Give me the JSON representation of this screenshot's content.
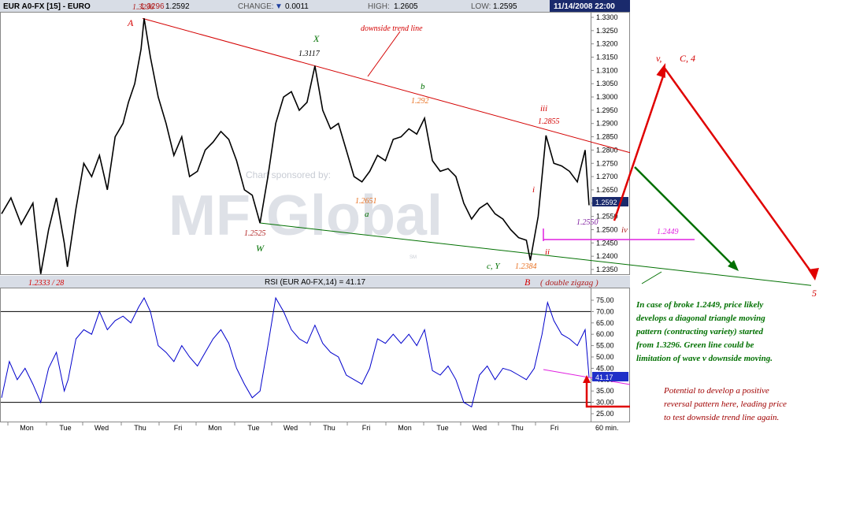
{
  "header": {
    "symbol": "EUR A0-FX [15] - EURO",
    "last_prefix": "1.3296",
    "last": "1.2592",
    "change_label": "CHANGE:",
    "change": "0.0011",
    "high_label": "HIGH:",
    "high": "1.2605",
    "low_label": "LOW:",
    "low": "1.2595",
    "datetime": "11/14/2008 22:00"
  },
  "watermark": {
    "line1": "Chart sponsored by:",
    "logo": "MF Global",
    "sm": "SM"
  },
  "price_panel": {
    "y_ticks": [
      "1.3300",
      "1.3250",
      "1.3200",
      "1.3150",
      "1.3100",
      "1.3050",
      "1.3000",
      "1.2950",
      "1.2900",
      "1.2850",
      "1.2800",
      "1.2750",
      "1.2700",
      "1.2650",
      "1.2600",
      "1.2550",
      "1.2500",
      "1.2450",
      "1.2400",
      "1.2350"
    ],
    "last_price_box": "1.2592",
    "colors": {
      "price_line": "#000000",
      "resistance": "#d40000",
      "support": "#007000",
      "magenta": "#e020e0",
      "orange": "#e87020"
    }
  },
  "rsi_panel": {
    "title": "RSI (EUR A0-FX,14) = 41.17",
    "y_ticks": [
      "75.00",
      "70.00",
      "65.00",
      "60.00",
      "55.00",
      "50.00",
      "45.00",
      "40.00",
      "35.00",
      "30.00",
      "25.00"
    ],
    "last_value_box": "41.17",
    "color": "#0000cc"
  },
  "x_axis": {
    "labels": [
      "Mon",
      "Tue",
      "Wed",
      "Thu",
      "Fri",
      "Mon",
      "Tue",
      "Wed",
      "Thu",
      "Fri",
      "Mon",
      "Tue",
      "Wed",
      "Thu",
      "Fri"
    ],
    "interval": "60 min."
  },
  "annotations": {
    "A": "A",
    "price_13296": "1.3296",
    "low_12333": "1.2333 / 28",
    "X": "X",
    "price_13117": "1.3117",
    "trend_label": "downside trend line",
    "b": "b",
    "price_1292": "1.292",
    "iii": "iii",
    "price_12855": "1.2855",
    "i": "i",
    "price_12651": "1.2651",
    "a": "a",
    "price_12525": "1.2525",
    "W": "W",
    "ii": "ii",
    "cY": "c, Y",
    "price_12384": "1.2384",
    "B": "B",
    "double_zigzag": "( double zigzag )",
    "price_12550": "1.2550",
    "iv": "iv",
    "price_12449": "1.2449",
    "v": "v,",
    "C4": "C, 4",
    "five": "5",
    "note1": [
      "In case of broke 1.2449, price likely",
      "develops a diagonal triangle moving",
      "pattern (contracting variety) started",
      "from 1.3296. Green line could be",
      "limitation of wave v downside moving."
    ],
    "note2": [
      "Potential to develop a positive",
      "reversal pattern here, leading price",
      "to test downside trend line again."
    ]
  },
  "chart_data": [
    {
      "type": "line",
      "title": "EUR A0-FX [15] - EURO",
      "interval": "60 min.",
      "ylim": [
        1.233,
        1.331
      ],
      "series": [
        {
          "name": "EUR A0-FX",
          "x": [
            "Mon",
            "Tue",
            "Wed",
            "Thu",
            "Fri",
            "Mon",
            "Tue",
            "Wed",
            "Thu",
            "Fri",
            "Mon",
            "Tue",
            "Wed",
            "Thu",
            "Fri"
          ],
          "points": [
            [
              0,
              1.256
            ],
            [
              12,
              1.262
            ],
            [
              25,
              1.252
            ],
            [
              40,
              1.26
            ],
            [
              50,
              1.2333
            ],
            [
              60,
              1.25
            ],
            [
              70,
              1.262
            ],
            [
              80,
              1.245
            ],
            [
              84,
              1.236
            ],
            [
              95,
              1.258
            ],
            [
              105,
              1.275
            ],
            [
              115,
              1.27
            ],
            [
              125,
              1.278
            ],
            [
              135,
              1.265
            ],
            [
              145,
              1.285
            ],
            [
              155,
              1.29
            ],
            [
              162,
              1.298
            ],
            [
              170,
              1.305
            ],
            [
              178,
              1.318
            ],
            [
              182,
              1.3296
            ],
            [
              190,
              1.315
            ],
            [
              200,
              1.3
            ],
            [
              210,
              1.29
            ],
            [
              220,
              1.278
            ],
            [
              230,
              1.285
            ],
            [
              240,
              1.27
            ],
            [
              250,
              1.272
            ],
            [
              260,
              1.28
            ],
            [
              270,
              1.283
            ],
            [
              280,
              1.287
            ],
            [
              290,
              1.284
            ],
            [
              300,
              1.276
            ],
            [
              310,
              1.265
            ],
            [
              320,
              1.263
            ],
            [
              330,
              1.2525
            ],
            [
              340,
              1.27
            ],
            [
              350,
              1.29
            ],
            [
              360,
              1.3
            ],
            [
              370,
              1.302
            ],
            [
              380,
              1.295
            ],
            [
              390,
              1.298
            ],
            [
              400,
              1.3117
            ],
            [
              410,
              1.295
            ],
            [
              420,
              1.288
            ],
            [
              430,
              1.29
            ],
            [
              440,
              1.28
            ],
            [
              450,
              1.27
            ],
            [
              460,
              1.268
            ],
            [
              470,
              1.272
            ],
            [
              480,
              1.278
            ],
            [
              490,
              1.276
            ],
            [
              500,
              1.284
            ],
            [
              510,
              1.285
            ],
            [
              520,
              1.288
            ],
            [
              530,
              1.286
            ],
            [
              540,
              1.292
            ],
            [
              550,
              1.276
            ],
            [
              560,
              1.272
            ],
            [
              570,
              1.273
            ],
            [
              580,
              1.27
            ],
            [
              590,
              1.26
            ],
            [
              600,
              1.254
            ],
            [
              610,
              1.258
            ],
            [
              620,
              1.26
            ],
            [
              630,
              1.256
            ],
            [
              640,
              1.254
            ],
            [
              650,
              1.25
            ],
            [
              660,
              1.247
            ],
            [
              670,
              1.246
            ],
            [
              675,
              1.2384
            ],
            [
              685,
              1.255
            ],
            [
              695,
              1.2855
            ],
            [
              705,
              1.275
            ],
            [
              715,
              1.274
            ],
            [
              725,
              1.272
            ],
            [
              735,
              1.268
            ],
            [
              745,
              1.28
            ],
            [
              750,
              1.2592
            ]
          ]
        },
        {
          "name": "downside trend line",
          "points": [
            [
              180,
              1.3296
            ],
            [
              800,
              1.279
            ]
          ]
        },
        {
          "name": "support line",
          "points": [
            [
              330,
              1.2525
            ],
            [
              1030,
              1.229
            ]
          ]
        }
      ]
    },
    {
      "type": "line",
      "title": "RSI (EUR A0-FX,14) = 41.17",
      "ylim": [
        22,
        78
      ],
      "reference_lines": [
        70,
        30
      ],
      "series": [
        {
          "name": "RSI",
          "points": [
            [
              0,
              32
            ],
            [
              10,
              48
            ],
            [
              20,
              40
            ],
            [
              30,
              45
            ],
            [
              40,
              38
            ],
            [
              50,
              30
            ],
            [
              60,
              45
            ],
            [
              70,
              52
            ],
            [
              80,
              35
            ],
            [
              85,
              40
            ],
            [
              95,
              58
            ],
            [
              105,
              62
            ],
            [
              115,
              60
            ],
            [
              125,
              70
            ],
            [
              135,
              62
            ],
            [
              145,
              66
            ],
            [
              155,
              68
            ],
            [
              165,
              65
            ],
            [
              175,
              72
            ],
            [
              182,
              76
            ],
            [
              190,
              70
            ],
            [
              200,
              55
            ],
            [
              210,
              52
            ],
            [
              220,
              48
            ],
            [
              230,
              55
            ],
            [
              240,
              50
            ],
            [
              250,
              46
            ],
            [
              260,
              52
            ],
            [
              270,
              58
            ],
            [
              280,
              62
            ],
            [
              290,
              56
            ],
            [
              300,
              45
            ],
            [
              310,
              38
            ],
            [
              320,
              32
            ],
            [
              330,
              35
            ],
            [
              340,
              55
            ],
            [
              350,
              76
            ],
            [
              360,
              70
            ],
            [
              370,
              62
            ],
            [
              380,
              58
            ],
            [
              390,
              56
            ],
            [
              400,
              64
            ],
            [
              410,
              56
            ],
            [
              420,
              52
            ],
            [
              430,
              50
            ],
            [
              440,
              42
            ],
            [
              450,
              40
            ],
            [
              460,
              38
            ],
            [
              470,
              45
            ],
            [
              480,
              58
            ],
            [
              490,
              56
            ],
            [
              500,
              60
            ],
            [
              510,
              56
            ],
            [
              520,
              60
            ],
            [
              530,
              55
            ],
            [
              540,
              62
            ],
            [
              550,
              44
            ],
            [
              560,
              42
            ],
            [
              570,
              46
            ],
            [
              580,
              40
            ],
            [
              590,
              30
            ],
            [
              600,
              28
            ],
            [
              610,
              42
            ],
            [
              620,
              46
            ],
            [
              630,
              40
            ],
            [
              640,
              45
            ],
            [
              650,
              44
            ],
            [
              660,
              42
            ],
            [
              670,
              40
            ],
            [
              680,
              45
            ],
            [
              690,
              60
            ],
            [
              697,
              74
            ],
            [
              705,
              66
            ],
            [
              715,
              60
            ],
            [
              725,
              58
            ],
            [
              735,
              55
            ],
            [
              745,
              62
            ],
            [
              750,
              41.17
            ]
          ]
        }
      ]
    }
  ]
}
